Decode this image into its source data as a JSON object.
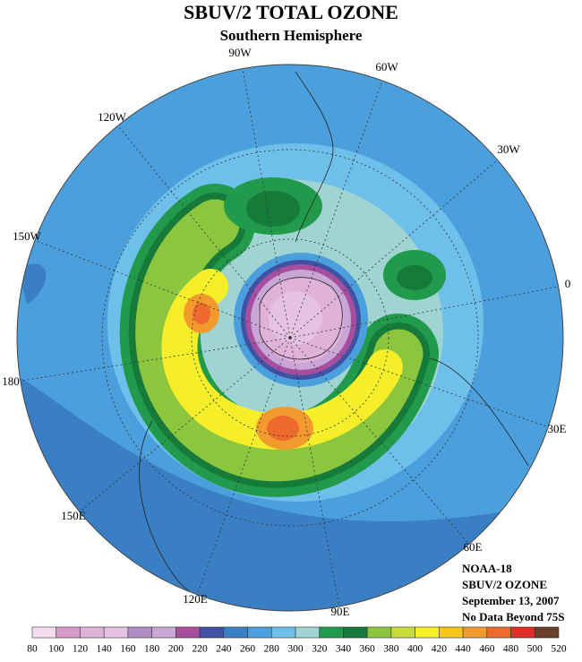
{
  "header": {
    "title": "SBUV/2 TOTAL OZONE",
    "subtitle": "Southern Hemisphere"
  },
  "map": {
    "longitude_labels": [
      "90W",
      "60W",
      "120W",
      "30W",
      "150W",
      "0",
      "180",
      "30E",
      "150E",
      "60E",
      "120E",
      "90E"
    ]
  },
  "notes": [
    "NOAA-18",
    "SBUV/2 OZONE",
    "September 13, 2007",
    "No Data Beyond 75S"
  ],
  "legend": {
    "ticks": [
      80,
      100,
      120,
      140,
      160,
      180,
      200,
      220,
      240,
      260,
      280,
      300,
      320,
      340,
      360,
      380,
      400,
      420,
      440,
      460,
      480,
      500,
      520
    ],
    "colors": [
      "#f5dcef",
      "#d59acb",
      "#e0b2d8",
      "#e6c2e2",
      "#b08cc6",
      "#c9a6d6",
      "#a64f9e",
      "#3f52a3",
      "#3a7fc4",
      "#4a9fdc",
      "#6ec0ea",
      "#9fd4d2",
      "#219b4b",
      "#157a3a",
      "#8cc63f",
      "#c8dc38",
      "#f7ee2a",
      "#f6c61b",
      "#f29a2e",
      "#ec6a2b",
      "#e02d28",
      "#6b3f2a"
    ]
  }
}
